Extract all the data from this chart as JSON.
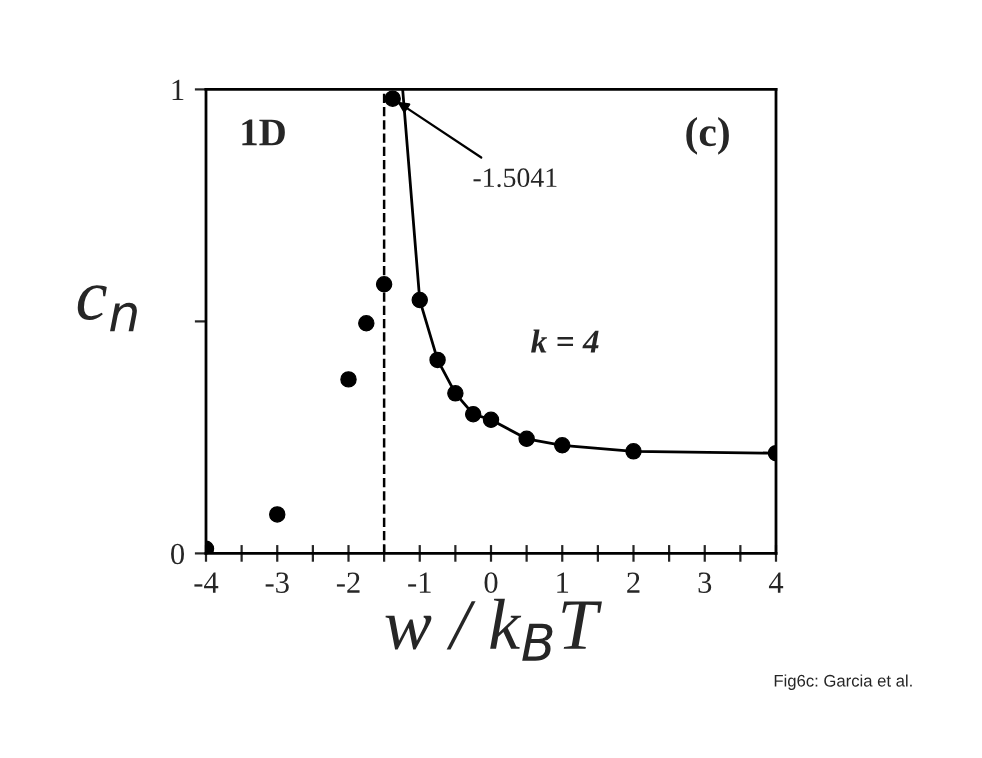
{
  "chart_data": {
    "type": "scatter",
    "xlabel": "w / k$_{B}$T",
    "ylabel": "c$_{n}$",
    "marker": "circle",
    "grid": false,
    "xlim": [
      -4,
      4
    ],
    "ylim": [
      0,
      1
    ],
    "xticks": [
      -4,
      {
        "value": -3.5,
        "label": null
      },
      -3,
      {
        "value": -2.5,
        "label": null
      },
      -2,
      {
        "value": -1.5,
        "label": null
      },
      -1,
      {
        "value": -0.5,
        "label": null
      },
      0,
      {
        "value": 0.5,
        "label": null
      },
      1,
      {
        "value": 1.5,
        "label": null
      },
      2,
      {
        "value": 2.5,
        "label": null
      },
      3,
      {
        "value": 3.5,
        "label": null
      },
      4
    ],
    "yticks": [
      0,
      {
        "value": 0.5,
        "label": null
      },
      1
    ],
    "series": [
      {
        "color": "#000000",
        "x": [
          -4,
          -3,
          -2,
          -1.75,
          -1.5,
          -1.38,
          -1,
          -0.75,
          -0.5,
          -0.25,
          0,
          0.5,
          1,
          2,
          4
        ],
        "values": [
          0.01,
          0.084,
          0.375,
          0.496,
          0.58,
          0.98,
          0.546,
          0.417,
          0.345,
          0.3,
          0.288,
          0.247,
          0.233,
          0.22,
          0.216
        ]
      },
      {
        "type": "line",
        "color": "#000000",
        "marker": "none",
        "line_style": "solid",
        "x": [
          -1.24,
          -1,
          -0.75,
          -0.5,
          -0.25,
          0,
          0.5,
          1,
          2,
          4
        ],
        "values": [
          1.0,
          0.546,
          0.417,
          0.345,
          0.3,
          0.288,
          0.247,
          0.233,
          0.22,
          0.216
        ]
      }
    ],
    "ref_lines": [
      {
        "axis": "x",
        "value": -1.5,
        "color": "#000000",
        "line_style": "dashed"
      }
    ],
    "annotations": [
      {
        "text": "-1.5041",
        "x": -1.38,
        "y": 0.98
      },
      "1D",
      "(c)",
      "k = 4",
      "Fig6c: Garcia et al."
    ]
  }
}
